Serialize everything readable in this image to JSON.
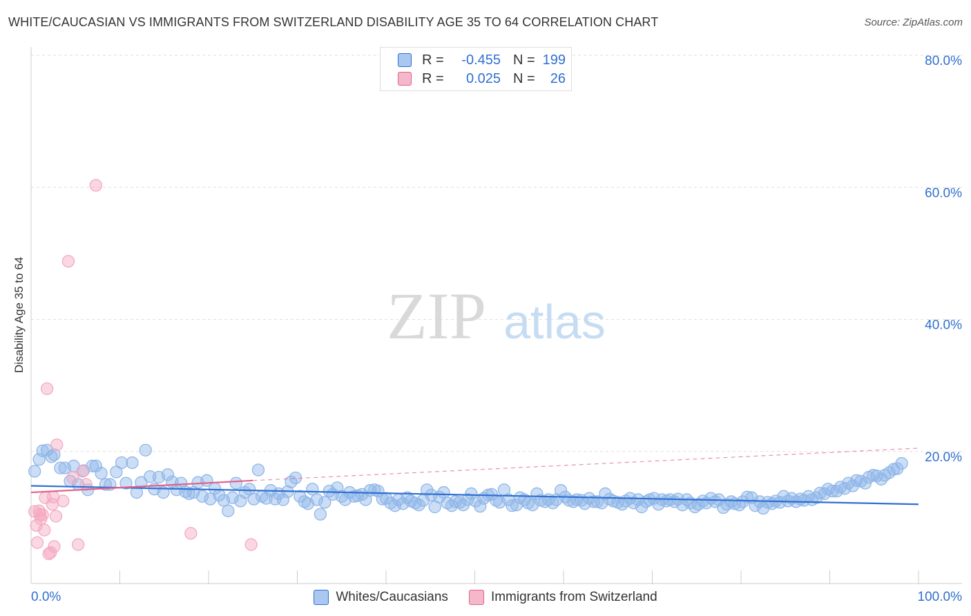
{
  "title": "WHITE/CAUCASIAN VS IMMIGRANTS FROM SWITZERLAND DISABILITY AGE 35 TO 64 CORRELATION CHART",
  "source": "Source: ZipAtlas.com",
  "watermark": {
    "zip": "ZIP",
    "atlas": "atlas"
  },
  "stats": [
    {
      "r_label": "R =",
      "r": "-0.455",
      "n_label": "N =",
      "n": "199",
      "color": "#a9c7f0"
    },
    {
      "r_label": "R =",
      "r": "0.025",
      "n_label": "N =",
      "n": "26",
      "color": "#f5b8cb"
    }
  ],
  "chart_data": {
    "type": "scatter",
    "title": "WHITE/CAUCASIAN VS IMMIGRANTS FROM SWITZERLAND DISABILITY AGE 35 TO 64 CORRELATION CHART",
    "xlabel": "",
    "ylabel": "Disability Age 35 to 64",
    "xlim": [
      0,
      100
    ],
    "ylim": [
      0,
      80
    ],
    "x_ticks": [
      "0.0%",
      "100.0%"
    ],
    "y_ticks": [
      {
        "value": 20,
        "label": "20.0%"
      },
      {
        "value": 40,
        "label": "40.0%"
      },
      {
        "value": 60,
        "label": "60.0%"
      },
      {
        "value": 80,
        "label": "80.0%"
      }
    ],
    "grid": true,
    "series": [
      {
        "name": "Whites/Caucasians",
        "color": "#8fb6e8",
        "line_color": "#2f6fd0",
        "trend": {
          "x": [
            0,
            100
          ],
          "y": [
            14.8,
            12.0
          ]
        },
        "points": [
          [
            0.4,
            17.0
          ],
          [
            0.9,
            18.8
          ],
          [
            1.3,
            20.1
          ],
          [
            1.8,
            20.2
          ],
          [
            2.3,
            19.2
          ],
          [
            2.6,
            19.5
          ],
          [
            3.3,
            17.5
          ],
          [
            3.8,
            17.5
          ],
          [
            4.4,
            15.5
          ],
          [
            4.8,
            17.8
          ],
          [
            5.3,
            15.0
          ],
          [
            5.9,
            17.1
          ],
          [
            6.4,
            14.2
          ],
          [
            6.9,
            17.8
          ],
          [
            7.3,
            17.8
          ],
          [
            7.9,
            16.7
          ],
          [
            8.4,
            15.0
          ],
          [
            8.9,
            15.0
          ],
          [
            9.6,
            16.9
          ],
          [
            10.2,
            18.3
          ],
          [
            10.7,
            15.2
          ],
          [
            11.4,
            18.3
          ],
          [
            11.9,
            13.8
          ],
          [
            12.4,
            15.3
          ],
          [
            12.9,
            20.2
          ],
          [
            13.4,
            16.2
          ],
          [
            13.9,
            14.3
          ],
          [
            14.4,
            16.1
          ],
          [
            14.9,
            13.8
          ],
          [
            15.4,
            16.5
          ],
          [
            15.9,
            15.4
          ],
          [
            16.4,
            14.2
          ],
          [
            16.9,
            15.2
          ],
          [
            17.4,
            13.9
          ],
          [
            17.8,
            13.6
          ],
          [
            18.3,
            13.8
          ],
          [
            18.8,
            15.3
          ],
          [
            19.3,
            13.2
          ],
          [
            19.8,
            15.6
          ],
          [
            20.2,
            12.8
          ],
          [
            20.7,
            14.4
          ],
          [
            21.2,
            13.4
          ],
          [
            21.7,
            12.6
          ],
          [
            22.2,
            11.0
          ],
          [
            22.7,
            13.0
          ],
          [
            23.1,
            15.2
          ],
          [
            23.6,
            12.5
          ],
          [
            24.1,
            13.8
          ],
          [
            24.6,
            14.3
          ],
          [
            25.1,
            12.8
          ],
          [
            25.6,
            17.2
          ],
          [
            26.0,
            13.2
          ],
          [
            26.5,
            12.9
          ],
          [
            27.0,
            14.1
          ],
          [
            27.5,
            12.8
          ],
          [
            27.9,
            13.6
          ],
          [
            28.4,
            12.7
          ],
          [
            28.9,
            13.9
          ],
          [
            29.3,
            15.4
          ],
          [
            29.8,
            16.0
          ],
          [
            30.3,
            13.2
          ],
          [
            30.8,
            12.4
          ],
          [
            31.2,
            12.1
          ],
          [
            31.7,
            14.3
          ],
          [
            32.2,
            12.7
          ],
          [
            32.6,
            10.5
          ],
          [
            33.1,
            12.3
          ],
          [
            33.6,
            14.0
          ],
          [
            34.0,
            13.5
          ],
          [
            34.5,
            14.5
          ],
          [
            35.0,
            13.2
          ],
          [
            35.4,
            12.7
          ],
          [
            35.9,
            13.8
          ],
          [
            36.4,
            13.2
          ],
          [
            36.8,
            13.3
          ],
          [
            37.3,
            13.5
          ],
          [
            37.7,
            12.7
          ],
          [
            38.2,
            14.1
          ],
          [
            38.7,
            14.2
          ],
          [
            39.1,
            14.0
          ],
          [
            39.6,
            12.8
          ],
          [
            40.0,
            12.9
          ],
          [
            40.5,
            12.2
          ],
          [
            41.0,
            11.8
          ],
          [
            41.4,
            12.7
          ],
          [
            41.9,
            12.1
          ],
          [
            42.4,
            13.0
          ],
          [
            42.8,
            12.5
          ],
          [
            43.3,
            12.2
          ],
          [
            43.7,
            11.9
          ],
          [
            44.2,
            12.6
          ],
          [
            44.6,
            14.2
          ],
          [
            45.1,
            13.4
          ],
          [
            45.5,
            11.6
          ],
          [
            46.0,
            13.1
          ],
          [
            46.5,
            13.8
          ],
          [
            46.9,
            12.2
          ],
          [
            47.4,
            11.8
          ],
          [
            47.8,
            12.4
          ],
          [
            48.3,
            12.3
          ],
          [
            48.7,
            11.9
          ],
          [
            49.2,
            12.7
          ],
          [
            49.6,
            13.6
          ],
          [
            50.1,
            12.5
          ],
          [
            50.6,
            11.7
          ],
          [
            51.0,
            12.9
          ],
          [
            51.5,
            13.4
          ],
          [
            51.9,
            13.5
          ],
          [
            52.4,
            12.6
          ],
          [
            52.8,
            12.3
          ],
          [
            53.3,
            14.2
          ],
          [
            53.8,
            12.7
          ],
          [
            54.2,
            11.8
          ],
          [
            54.7,
            11.9
          ],
          [
            55.1,
            13.0
          ],
          [
            55.6,
            12.7
          ],
          [
            56.0,
            12.2
          ],
          [
            56.5,
            11.9
          ],
          [
            57.0,
            13.6
          ],
          [
            57.4,
            12.6
          ],
          [
            57.9,
            12.4
          ],
          [
            58.3,
            12.7
          ],
          [
            58.8,
            12.2
          ],
          [
            59.2,
            12.7
          ],
          [
            59.7,
            14.1
          ],
          [
            60.2,
            13.1
          ],
          [
            60.6,
            12.6
          ],
          [
            61.1,
            12.4
          ],
          [
            61.5,
            12.7
          ],
          [
            62.0,
            12.6
          ],
          [
            62.4,
            12.1
          ],
          [
            62.9,
            12.9
          ],
          [
            63.4,
            12.4
          ],
          [
            63.8,
            12.4
          ],
          [
            64.3,
            12.2
          ],
          [
            64.7,
            13.6
          ],
          [
            65.2,
            12.8
          ],
          [
            65.6,
            12.5
          ],
          [
            66.1,
            12.3
          ],
          [
            66.6,
            12.0
          ],
          [
            67.0,
            12.5
          ],
          [
            67.5,
            12.9
          ],
          [
            67.9,
            12.2
          ],
          [
            68.4,
            12.7
          ],
          [
            68.8,
            11.6
          ],
          [
            69.3,
            12.4
          ],
          [
            69.7,
            12.7
          ],
          [
            70.2,
            12.9
          ],
          [
            70.7,
            12.0
          ],
          [
            71.1,
            12.7
          ],
          [
            71.6,
            12.5
          ],
          [
            72.0,
            12.7
          ],
          [
            72.5,
            12.4
          ],
          [
            72.9,
            12.8
          ],
          [
            73.4,
            11.9
          ],
          [
            73.9,
            12.7
          ],
          [
            74.3,
            12.2
          ],
          [
            74.8,
            11.6
          ],
          [
            75.2,
            12.0
          ],
          [
            75.7,
            12.5
          ],
          [
            76.1,
            12.2
          ],
          [
            76.6,
            12.9
          ],
          [
            77.1,
            12.4
          ],
          [
            77.5,
            12.7
          ],
          [
            78.0,
            11.5
          ],
          [
            78.4,
            12.0
          ],
          [
            78.9,
            12.4
          ],
          [
            79.3,
            12.1
          ],
          [
            79.8,
            11.9
          ],
          [
            80.2,
            12.4
          ],
          [
            80.7,
            13.1
          ],
          [
            81.2,
            13.0
          ],
          [
            81.6,
            11.8
          ],
          [
            82.1,
            12.4
          ],
          [
            82.5,
            11.4
          ],
          [
            83.0,
            12.3
          ],
          [
            83.5,
            12.1
          ],
          [
            83.9,
            12.5
          ],
          [
            84.4,
            12.3
          ],
          [
            84.8,
            13.2
          ],
          [
            85.3,
            12.5
          ],
          [
            85.7,
            12.9
          ],
          [
            86.2,
            12.4
          ],
          [
            86.7,
            12.8
          ],
          [
            87.1,
            12.6
          ],
          [
            87.6,
            13.2
          ],
          [
            88.0,
            12.7
          ],
          [
            88.5,
            13.0
          ],
          [
            88.9,
            13.7
          ],
          [
            89.4,
            13.6
          ],
          [
            89.8,
            14.3
          ],
          [
            90.3,
            14.0
          ],
          [
            90.8,
            14.0
          ],
          [
            91.2,
            14.6
          ],
          [
            91.7,
            14.4
          ],
          [
            92.1,
            15.2
          ],
          [
            92.6,
            14.8
          ],
          [
            93.0,
            15.6
          ],
          [
            93.5,
            15.5
          ],
          [
            94.0,
            15.2
          ],
          [
            94.4,
            16.1
          ],
          [
            94.9,
            16.4
          ],
          [
            95.3,
            16.3
          ],
          [
            95.8,
            15.8
          ],
          [
            96.2,
            16.4
          ],
          [
            96.7,
            16.8
          ],
          [
            97.2,
            17.3
          ],
          [
            97.6,
            17.4
          ],
          [
            98.1,
            18.2
          ]
        ]
      },
      {
        "name": "Immigrants from Switzerland",
        "color": "#f5a9c0",
        "line_color": "#e2608a",
        "trend": {
          "x": [
            0,
            25
          ],
          "y": [
            13.8,
            15.6
          ]
        },
        "trend_extension": {
          "x": [
            25,
            100
          ],
          "y": [
            15.6,
            20.5
          ]
        },
        "points": [
          [
            0.4,
            10.9
          ],
          [
            0.6,
            8.8
          ],
          [
            0.7,
            6.2
          ],
          [
            0.9,
            11.0
          ],
          [
            1.0,
            10.5
          ],
          [
            1.1,
            9.8
          ],
          [
            1.3,
            10.4
          ],
          [
            1.5,
            8.1
          ],
          [
            1.6,
            13.0
          ],
          [
            1.8,
            29.5
          ],
          [
            2.0,
            4.5
          ],
          [
            2.2,
            4.7
          ],
          [
            2.4,
            12.0
          ],
          [
            2.5,
            13.1
          ],
          [
            2.6,
            5.6
          ],
          [
            2.8,
            10.2
          ],
          [
            2.9,
            21.0
          ],
          [
            3.6,
            12.5
          ],
          [
            4.2,
            48.8
          ],
          [
            4.7,
            16.0
          ],
          [
            5.3,
            5.9
          ],
          [
            5.8,
            17.0
          ],
          [
            6.2,
            15.0
          ],
          [
            7.3,
            60.3
          ],
          [
            18.0,
            7.6
          ],
          [
            24.8,
            5.9
          ]
        ]
      }
    ]
  },
  "legend": [
    {
      "label": "Whites/Caucasians",
      "color": "#a9c7f0"
    },
    {
      "label": "Immigrants from Switzerland",
      "color": "#f5b8cb"
    }
  ]
}
